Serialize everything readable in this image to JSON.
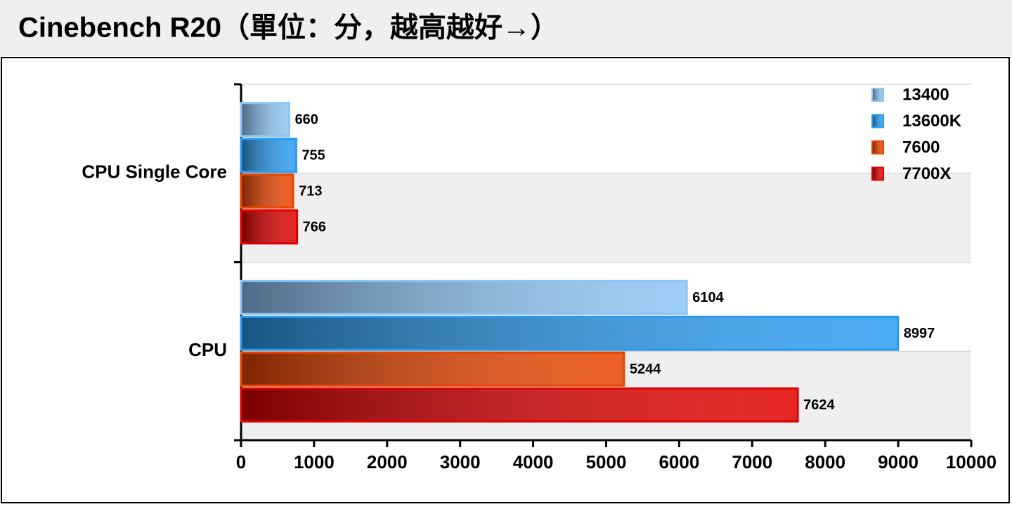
{
  "chart_data": {
    "type": "hbar",
    "title": "Cinebench R20（單位：分，越高越好→）",
    "categories": [
      "CPU Single Core",
      "CPU"
    ],
    "series": [
      {
        "name": "13400",
        "color": "#8cc4f4",
        "values": [
          660,
          6104
        ]
      },
      {
        "name": "13600K",
        "color": "#2a9cf0",
        "values": [
          755,
          8997
        ]
      },
      {
        "name": "7600",
        "color": "#e84400",
        "values": [
          713,
          5244
        ]
      },
      {
        "name": "7700X",
        "color": "#e00000",
        "values": [
          766,
          7624
        ]
      }
    ],
    "xlim": [
      0,
      10000
    ],
    "xticks": [
      0,
      1000,
      2000,
      3000,
      4000,
      5000,
      6000,
      7000,
      8000,
      9000,
      10000
    ],
    "grid": true,
    "legend": "top-right"
  }
}
